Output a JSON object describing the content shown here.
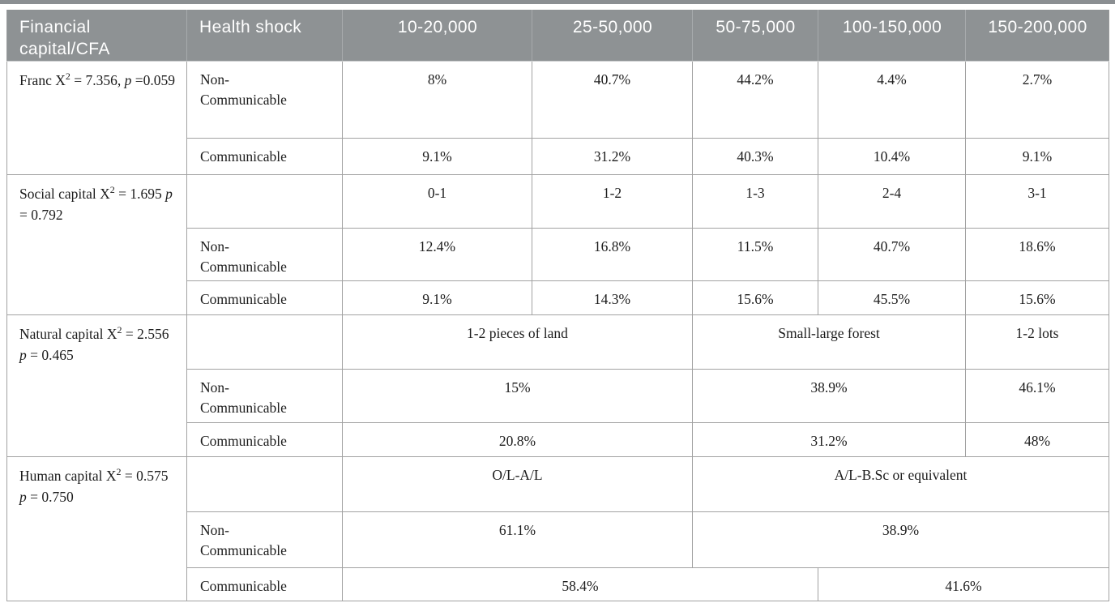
{
  "colors": {
    "header_background": "#8e9294",
    "header_text": "#ffffff",
    "top_rule": "#8b8f92",
    "cell_border": "#a2a2a2",
    "body_text": "#1c1c1c"
  },
  "table": {
    "columns": [
      "Financial capital/CFA",
      "Health shock",
      "10-20,000",
      "25-50,000",
      "50-75,000",
      "100-150,000",
      "150-200,000"
    ],
    "groups": [
      {
        "label_text": "Franc X2 = 7.356, p =0.059",
        "label_segments": [
          {
            "t": "Franc X"
          },
          {
            "t": "2",
            "sup": true
          },
          {
            "t": " = 7.356, "
          },
          {
            "t": "p",
            "i": true
          },
          {
            "t": " =0.059"
          }
        ],
        "rows": [
          {
            "shock": "Non-Communicable",
            "cells": [
              {
                "t": "8%"
              },
              {
                "t": "40.7%"
              },
              {
                "t": "44.2%"
              },
              {
                "t": "4.4%"
              },
              {
                "t": "2.7%"
              }
            ]
          },
          {
            "shock": "Communicable",
            "cells": [
              {
                "t": "9.1%"
              },
              {
                "t": "31.2%"
              },
              {
                "t": "40.3%"
              },
              {
                "t": "10.4%"
              },
              {
                "t": "9.1%"
              }
            ]
          }
        ]
      },
      {
        "label_text": "Social capital X2 = 1.695 p = 0.792",
        "label_segments": [
          {
            "t": "Social capital X"
          },
          {
            "t": "2",
            "sup": true
          },
          {
            "t": " = 1.695 "
          },
          {
            "t": "p",
            "i": true
          },
          {
            "t": " = 0.792"
          }
        ],
        "rows": [
          {
            "shock": "",
            "cells": [
              {
                "t": "0-1"
              },
              {
                "t": "1-2"
              },
              {
                "t": "1-3"
              },
              {
                "t": "2-4"
              },
              {
                "t": "3-1"
              }
            ]
          },
          {
            "shock": "Non-Communicable",
            "cells": [
              {
                "t": "12.4%"
              },
              {
                "t": "16.8%"
              },
              {
                "t": "11.5%"
              },
              {
                "t": "40.7%"
              },
              {
                "t": "18.6%"
              }
            ]
          },
          {
            "shock": "Communicable",
            "cells": [
              {
                "t": "9.1%"
              },
              {
                "t": "14.3%"
              },
              {
                "t": "15.6%"
              },
              {
                "t": "45.5%"
              },
              {
                "t": "15.6%"
              }
            ]
          }
        ]
      },
      {
        "label_text": "Natural capital X2 = 2.556 p = 0.465",
        "label_segments": [
          {
            "t": "Natural capital X"
          },
          {
            "t": "2",
            "sup": true
          },
          {
            "t": " = 2.556 "
          },
          {
            "t": "p",
            "i": true
          },
          {
            "t": " = 0.465"
          }
        ],
        "rows": [
          {
            "shock": "",
            "cells": [
              {
                "t": "1-2 pieces of land",
                "span": 2
              },
              {
                "t": "Small-large forest",
                "span": 2
              },
              {
                "t": "1-2 lots"
              }
            ]
          },
          {
            "shock": "Non-Communicable",
            "cells": [
              {
                "t": "15%",
                "span": 2
              },
              {
                "t": "38.9%",
                "span": 2
              },
              {
                "t": "46.1%"
              }
            ]
          },
          {
            "shock": "Communicable",
            "cells": [
              {
                "t": "20.8%",
                "span": 2
              },
              {
                "t": "31.2%",
                "span": 2
              },
              {
                "t": "48%"
              }
            ]
          }
        ]
      },
      {
        "label_text": "Human capital X2 = 0.575 p = 0.750",
        "label_segments": [
          {
            "t": "Human capital X"
          },
          {
            "t": "2",
            "sup": true
          },
          {
            "t": " = 0.575 "
          },
          {
            "t": "p",
            "i": true
          },
          {
            "t": " = 0.750"
          }
        ],
        "rows": [
          {
            "shock": "",
            "cells": [
              {
                "t": "O/L-A/L",
                "span": 2
              },
              {
                "t": "A/L-B.Sc or equivalent",
                "span": 3
              }
            ]
          },
          {
            "shock": "Non-Communicable",
            "cells": [
              {
                "t": "61.1%",
                "span": 2
              },
              {
                "t": "38.9%",
                "span": 3
              }
            ]
          },
          {
            "shock": "Communicable",
            "cells": [
              {
                "t": "58.4%",
                "span": 3
              },
              {
                "t": "41.6%",
                "span": 2
              }
            ]
          }
        ]
      }
    ]
  }
}
